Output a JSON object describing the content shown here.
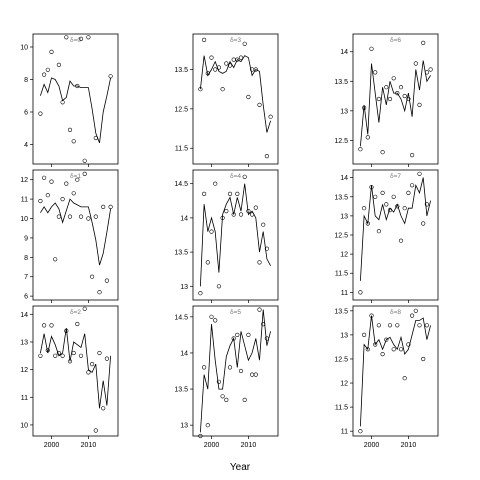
{
  "chart_data": {
    "type": "line",
    "xlabel": "Year",
    "xlim": [
      1995,
      2018
    ],
    "xticks": [
      2000,
      2010
    ],
    "panels": [
      {
        "title": "δ=0",
        "ylim": [
          2.8,
          10.8
        ],
        "yticks": [
          4,
          6,
          8,
          10
        ],
        "line_x": [
          1997,
          1998,
          1999,
          2000,
          2001,
          2002,
          2003,
          2004,
          2005,
          2006,
          2007,
          2008,
          2009,
          2010,
          2011,
          2012,
          2013,
          2014,
          2015,
          2016
        ],
        "line_y": [
          7.0,
          7.7,
          7.2,
          8.1,
          8.0,
          7.6,
          6.7,
          6.9,
          7.9,
          7.6,
          7.6,
          7.5,
          7.5,
          7.5,
          6.2,
          4.7,
          4.1,
          6.0,
          7.0,
          8.1
        ],
        "points_x": [
          1997,
          1998,
          1999,
          2000,
          2001,
          2002,
          2003,
          2004,
          2005,
          2006,
          2007,
          2008,
          2009,
          2010,
          2011,
          2012,
          2013,
          2014,
          2015,
          2016
        ],
        "points_y": [
          5.9,
          8.3,
          8.6,
          9.7,
          null,
          8.9,
          6.6,
          10.6,
          4.9,
          4.2,
          7.6,
          10.5,
          3.0,
          10.6,
          null,
          4.4,
          null,
          null,
          null,
          8.2
        ]
      },
      {
        "title": "δ=3",
        "ylim": [
          11.1,
          14.4
        ],
        "yticks": [
          11.5,
          12.5,
          13.5
        ],
        "line_x": [
          1997,
          1998,
          1999,
          2000,
          2001,
          2002,
          2003,
          2004,
          2005,
          2006,
          2007,
          2008,
          2009,
          2010,
          2011,
          2012,
          2013,
          2014,
          2015,
          2016
        ],
        "line_y": [
          13.0,
          13.85,
          13.35,
          13.5,
          13.7,
          13.45,
          13.4,
          13.45,
          13.7,
          13.55,
          13.75,
          13.7,
          13.85,
          13.8,
          13.35,
          13.5,
          13.45,
          12.6,
          11.9,
          12.2
        ],
        "points_x": [
          1997,
          1998,
          1999,
          2000,
          2001,
          2002,
          2003,
          2004,
          2005,
          2006,
          2007,
          2008,
          2009,
          2010,
          2011,
          2012,
          2013,
          2014,
          2015,
          2016
        ],
        "points_y": [
          13.0,
          14.25,
          13.4,
          13.8,
          13.5,
          13.55,
          13.0,
          13.65,
          13.6,
          13.75,
          13.75,
          13.8,
          14.15,
          12.8,
          13.5,
          13.5,
          12.6,
          null,
          11.3,
          12.3
        ]
      },
      {
        "title": "δ=6",
        "ylim": [
          12.1,
          14.3
        ],
        "yticks": [
          12.5,
          13.0,
          13.5,
          14.0
        ],
        "line_x": [
          1997,
          1998,
          1999,
          2000,
          2001,
          2002,
          2003,
          2004,
          2005,
          2006,
          2007,
          2008,
          2009,
          2010,
          2011,
          2012,
          2013,
          2014,
          2015,
          2016
        ],
        "line_y": [
          12.4,
          13.1,
          12.6,
          13.8,
          13.3,
          12.8,
          13.4,
          13.1,
          13.5,
          13.3,
          13.3,
          13.2,
          13.0,
          13.3,
          12.9,
          13.7,
          13.35,
          13.85,
          13.5,
          13.6
        ],
        "points_x": [
          1997,
          1998,
          1999,
          2000,
          2001,
          2002,
          2003,
          2004,
          2005,
          2006,
          2007,
          2008,
          2009,
          2010,
          2011,
          2012,
          2013,
          2014,
          2015,
          2016
        ],
        "points_y": [
          12.35,
          13.05,
          12.55,
          14.05,
          13.65,
          13.2,
          12.3,
          13.4,
          13.2,
          13.55,
          13.3,
          13.4,
          13.25,
          13.2,
          12.25,
          13.8,
          13.1,
          14.15,
          13.65,
          13.7
        ]
      },
      {
        "title": "δ=1",
        "ylim": [
          5.8,
          12.5
        ],
        "yticks": [
          6,
          7,
          8,
          9,
          10,
          11,
          12
        ],
        "line_x": [
          1997,
          1998,
          1999,
          2000,
          2001,
          2002,
          2003,
          2004,
          2005,
          2006,
          2007,
          2008,
          2009,
          2010,
          2011,
          2012,
          2013,
          2014,
          2015,
          2016
        ],
        "line_y": [
          10.3,
          10.6,
          10.3,
          10.6,
          10.8,
          10.5,
          9.8,
          10.4,
          11.0,
          10.8,
          10.7,
          10.6,
          10.6,
          10.6,
          9.8,
          8.9,
          7.6,
          8.2,
          9.3,
          10.5
        ],
        "points_x": [
          1997,
          1998,
          1999,
          2000,
          2001,
          2002,
          2003,
          2004,
          2005,
          2006,
          2007,
          2008,
          2009,
          2010,
          2011,
          2012,
          2013,
          2014,
          2015,
          2016
        ],
        "points_y": [
          10.9,
          12.1,
          11.2,
          11.9,
          7.9,
          10.1,
          11.0,
          11.8,
          10.1,
          11.3,
          12.0,
          10.1,
          12.3,
          10.0,
          7.0,
          10.1,
          6.2,
          10.6,
          6.8,
          10.6
        ]
      },
      {
        "title": "δ=4",
        "ylim": [
          12.8,
          14.7
        ],
        "yticks": [
          13.0,
          13.5,
          14.0,
          14.5
        ],
        "line_x": [
          1997,
          1998,
          1999,
          2000,
          2001,
          2002,
          2003,
          2004,
          2005,
          2006,
          2007,
          2008,
          2009,
          2010,
          2011,
          2012,
          2013,
          2014,
          2015,
          2016
        ],
        "line_y": [
          13.0,
          14.2,
          13.8,
          14.0,
          13.8,
          13.2,
          14.05,
          14.2,
          14.3,
          14.05,
          14.3,
          14.1,
          14.5,
          14.05,
          14.1,
          14.0,
          13.5,
          13.8,
          13.4,
          13.3
        ],
        "points_x": [
          1997,
          1998,
          1999,
          2000,
          2001,
          2002,
          2003,
          2004,
          2005,
          2006,
          2007,
          2008,
          2009,
          2010,
          2011,
          2012,
          2013,
          2014,
          2015,
          2016
        ],
        "points_y": [
          12.9,
          14.35,
          13.35,
          13.8,
          14.5,
          13.0,
          14.0,
          14.1,
          14.35,
          14.05,
          14.35,
          14.05,
          14.6,
          14.1,
          14.05,
          14.15,
          13.35,
          13.9,
          13.55,
          null
        ]
      },
      {
        "title": "δ=7",
        "ylim": [
          10.8,
          14.2
        ],
        "yticks": [
          11.0,
          11.5,
          12.0,
          12.5,
          13.0,
          13.5,
          14.0
        ],
        "line_x": [
          1997,
          1998,
          1999,
          2000,
          2001,
          2002,
          2003,
          2004,
          2005,
          2006,
          2007,
          2008,
          2009,
          2010,
          2011,
          2012,
          2013,
          2014,
          2015,
          2016
        ],
        "line_y": [
          11.3,
          13.0,
          12.8,
          13.8,
          13.0,
          12.9,
          13.3,
          12.9,
          13.2,
          13.1,
          13.3,
          13.0,
          12.8,
          13.2,
          13.2,
          13.8,
          13.6,
          14.0,
          13.0,
          13.4
        ],
        "points_x": [
          1997,
          1998,
          1999,
          2000,
          2001,
          2002,
          2003,
          2004,
          2005,
          2006,
          2007,
          2008,
          2009,
          2010,
          2011,
          2012,
          2013,
          2014,
          2015,
          2016
        ],
        "points_y": [
          11.0,
          13.2,
          12.8,
          13.75,
          13.5,
          12.6,
          13.6,
          13.3,
          13.15,
          13.5,
          13.25,
          12.35,
          13.2,
          13.6,
          13.8,
          null,
          14.1,
          12.8,
          13.3,
          null
        ]
      },
      {
        "title": "δ=2",
        "ylim": [
          9.6,
          14.3
        ],
        "yticks": [
          10,
          11,
          12,
          13,
          14
        ],
        "line_x": [
          1997,
          1998,
          1999,
          2000,
          2001,
          2002,
          2003,
          2004,
          2005,
          2006,
          2007,
          2008,
          2009,
          2010,
          2011,
          2012,
          2013,
          2014,
          2015,
          2016
        ],
        "line_y": [
          12.6,
          13.3,
          12.6,
          13.2,
          12.9,
          12.5,
          12.6,
          13.5,
          12.3,
          13.0,
          12.9,
          12.8,
          13.3,
          12.0,
          11.9,
          12.2,
          10.6,
          11.6,
          10.7,
          12.5
        ],
        "points_x": [
          1997,
          1998,
          1999,
          2000,
          2001,
          2002,
          2003,
          2004,
          2005,
          2006,
          2007,
          2008,
          2009,
          2010,
          2011,
          2012,
          2013,
          2014,
          2015,
          2016
        ],
        "points_y": [
          12.5,
          13.6,
          12.7,
          13.6,
          12.5,
          12.6,
          12.5,
          13.4,
          12.3,
          12.6,
          13.65,
          12.5,
          14.2,
          11.9,
          12.2,
          9.8,
          12.6,
          10.6,
          12.4,
          null
        ]
      },
      {
        "title": "δ=5",
        "ylim": [
          12.85,
          14.65
        ],
        "yticks": [
          13.0,
          13.5,
          14.0,
          14.5
        ],
        "line_x": [
          1997,
          1998,
          1999,
          2000,
          2001,
          2002,
          2003,
          2004,
          2005,
          2006,
          2007,
          2008,
          2009,
          2010,
          2011,
          2012,
          2013,
          2014,
          2015,
          2016
        ],
        "line_y": [
          12.9,
          13.7,
          13.5,
          14.4,
          13.9,
          13.5,
          13.5,
          13.95,
          14.1,
          14.2,
          13.8,
          14.3,
          14.1,
          13.9,
          14.0,
          14.2,
          13.9,
          14.6,
          14.1,
          14.3
        ],
        "points_x": [
          1997,
          1998,
          1999,
          2000,
          2001,
          2002,
          2003,
          2004,
          2005,
          2006,
          2007,
          2008,
          2009,
          2010,
          2011,
          2012,
          2013,
          2014,
          2015,
          2016
        ],
        "points_y": [
          12.85,
          13.8,
          13.0,
          14.5,
          14.45,
          13.6,
          13.4,
          13.35,
          13.8,
          14.2,
          14.25,
          13.75,
          13.35,
          14.25,
          13.7,
          13.7,
          14.6,
          14.4,
          14.2,
          null
        ]
      },
      {
        "title": "δ=8",
        "ylim": [
          10.9,
          13.6
        ],
        "yticks": [
          11.0,
          11.5,
          12.0,
          12.5,
          13.0,
          13.5
        ],
        "line_x": [
          1997,
          1998,
          1999,
          2000,
          2001,
          2002,
          2003,
          2004,
          2005,
          2006,
          2007,
          2008,
          2009,
          2010,
          2011,
          2012,
          2013,
          2014,
          2015,
          2016
        ],
        "line_y": [
          11.1,
          12.8,
          12.7,
          13.4,
          12.8,
          12.9,
          12.7,
          12.9,
          12.95,
          12.8,
          12.7,
          12.95,
          12.6,
          12.7,
          13.0,
          13.3,
          13.3,
          13.35,
          12.9,
          13.2
        ],
        "points_x": [
          1997,
          1998,
          1999,
          2000,
          2001,
          2002,
          2003,
          2004,
          2005,
          2006,
          2007,
          2008,
          2009,
          2010,
          2011,
          2012,
          2013,
          2014,
          2015,
          2016
        ],
        "points_y": [
          11.0,
          13.0,
          12.7,
          13.4,
          12.8,
          13.2,
          12.6,
          12.9,
          13.2,
          12.7,
          13.2,
          12.7,
          12.1,
          12.8,
          13.4,
          13.5,
          13.2,
          12.5,
          13.2,
          null
        ]
      }
    ]
  }
}
